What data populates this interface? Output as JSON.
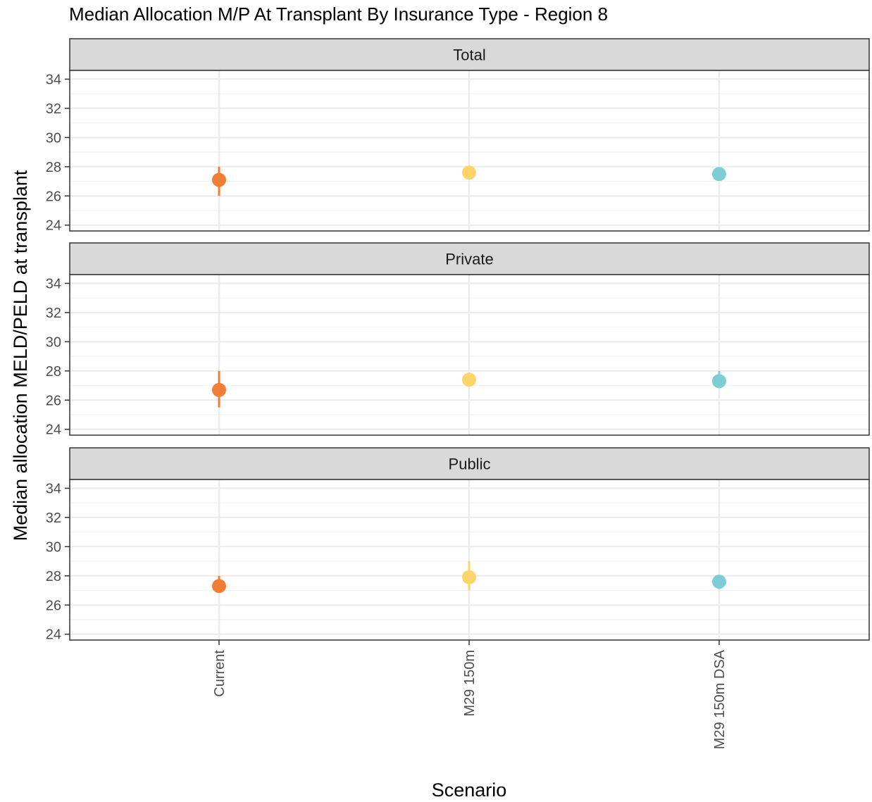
{
  "chart_data": {
    "type": "scatter",
    "title": "Median Allocation M/P At Transplant By Insurance Type - Region 8",
    "xlabel": "Scenario",
    "ylabel": "Median allocation MELD/PELD at transplant",
    "categories": [
      "Current",
      "M29 150m",
      "M29 150m DSA"
    ],
    "ylim": [
      23.6,
      34.6
    ],
    "yticks": [
      24,
      26,
      28,
      30,
      32,
      34
    ],
    "grid": true,
    "legend": "none",
    "series_colors": [
      "#F07F35",
      "#FDD36C",
      "#7ECCD4"
    ],
    "facets": [
      {
        "name": "Total",
        "points": [
          {
            "x": "Current",
            "y": 27.1,
            "ymin": 26.0,
            "ymax": 28.0
          },
          {
            "x": "M29 150m",
            "y": 27.6,
            "ymin": 27.3,
            "ymax": 27.8
          },
          {
            "x": "M29 150m DSA",
            "y": 27.5,
            "ymin": 27.3,
            "ymax": 27.7
          }
        ]
      },
      {
        "name": "Private",
        "points": [
          {
            "x": "Current",
            "y": 26.7,
            "ymin": 25.5,
            "ymax": 28.0
          },
          {
            "x": "M29 150m",
            "y": 27.4,
            "ymin": 27.1,
            "ymax": 27.8
          },
          {
            "x": "M29 150m DSA",
            "y": 27.3,
            "ymin": 27.0,
            "ymax": 28.0
          }
        ]
      },
      {
        "name": "Public",
        "points": [
          {
            "x": "Current",
            "y": 27.3,
            "ymin": 27.0,
            "ymax": 28.0
          },
          {
            "x": "M29 150m",
            "y": 27.9,
            "ymin": 27.0,
            "ymax": 29.0
          },
          {
            "x": "M29 150m DSA",
            "y": 27.6,
            "ymin": 27.1,
            "ymax": 27.9
          }
        ]
      }
    ]
  }
}
